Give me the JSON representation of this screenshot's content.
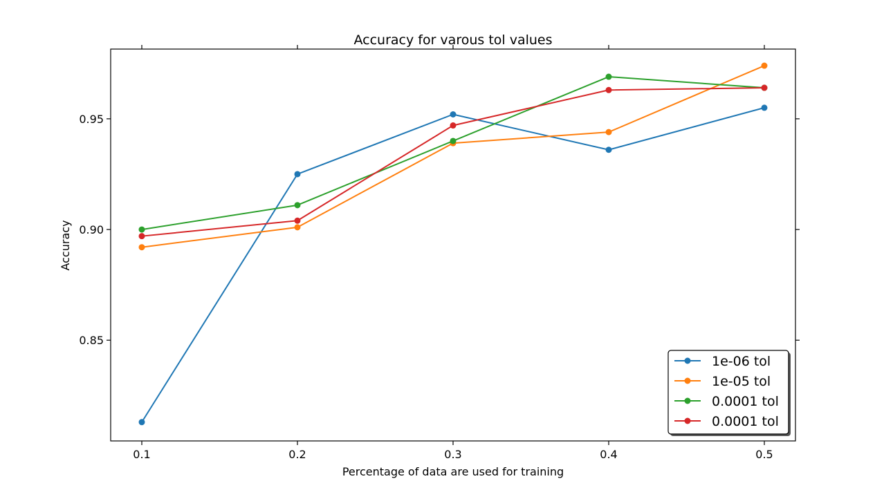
{
  "chart_data": {
    "type": "line",
    "title": "Accuracy for varous tol values",
    "xlabel": "Percentage of data are used for training",
    "ylabel": "Accuracy",
    "x": [
      0.1,
      0.2,
      0.3,
      0.4,
      0.5
    ],
    "xlim": [
      0.08,
      0.52
    ],
    "ylim": [
      0.8045,
      0.9815
    ],
    "xticks": [
      0.1,
      0.2,
      0.3,
      0.4,
      0.5
    ],
    "xtick_labels": [
      "0.1",
      "0.2",
      "0.3",
      "0.4",
      "0.5"
    ],
    "yticks": [
      0.85,
      0.9,
      0.95
    ],
    "ytick_labels": [
      "0.85",
      "0.90",
      "0.95"
    ],
    "grid": false,
    "legend_position": "lower-right",
    "series": [
      {
        "name": "1e-06 tol",
        "color": "#1f77b4",
        "values": [
          0.813,
          0.925,
          0.952,
          0.936,
          0.955
        ]
      },
      {
        "name": "1e-05 tol",
        "color": "#ff7f0e",
        "values": [
          0.892,
          0.901,
          0.939,
          0.944,
          0.974
        ]
      },
      {
        "name": "0.0001 tol",
        "color": "#2ca02c",
        "values": [
          0.9,
          0.911,
          0.94,
          0.969,
          0.964
        ]
      },
      {
        "name": "0.0001 tol",
        "color": "#d62728",
        "values": [
          0.897,
          0.904,
          0.947,
          0.963,
          0.964
        ]
      }
    ]
  }
}
